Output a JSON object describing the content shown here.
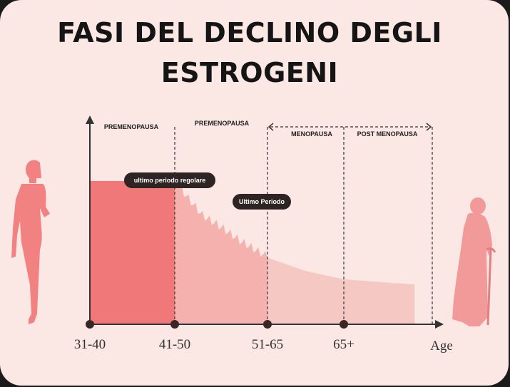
{
  "title_line1": "FASI DEL DECLINO DEGLI",
  "title_line2": "ESTROGENI",
  "chart_data": {
    "type": "area",
    "title": "FASI DEL DECLINO DEGLI ESTROGENI",
    "xlabel": "Age",
    "categories": [
      "31-40",
      "41-50",
      "51-65",
      "65+"
    ],
    "phases": [
      {
        "label": "PREMENOPAUSA",
        "from": "31-40",
        "to": "41-50"
      },
      {
        "label": "PREMENOPAUSA",
        "from": "41-50",
        "to": "51-65"
      },
      {
        "label": "MENOPAUSA",
        "from": "51-65",
        "to": "65+"
      },
      {
        "label": "POST MENOPAUSA",
        "from": "65+",
        "to": "Age"
      }
    ],
    "annotations": [
      {
        "label": "ultimo periodo regolare",
        "at": "41-50"
      },
      {
        "label": "Ultimo Periodo",
        "at": "51-65"
      }
    ],
    "profile": {
      "x": [
        0,
        0.5,
        1.0,
        1.15,
        1.3,
        1.5,
        1.7,
        2.0,
        2.5,
        3.0,
        3.5,
        3.8
      ],
      "y": [
        0.86,
        0.86,
        0.86,
        0.75,
        0.65,
        0.58,
        0.5,
        0.4,
        0.32,
        0.27,
        0.25,
        0.24
      ]
    },
    "ylim": [
      0,
      1
    ],
    "colors": {
      "segment1": "#f07878",
      "segment2": "#f4b1ae",
      "segment3": "#f6c8c3",
      "axis": "#333333",
      "silhouette_young": "#f28282",
      "silhouette_old": "#f29a9a"
    }
  },
  "icons": [
    "young-woman-silhouette-icon",
    "elderly-woman-silhouette-icon"
  ]
}
